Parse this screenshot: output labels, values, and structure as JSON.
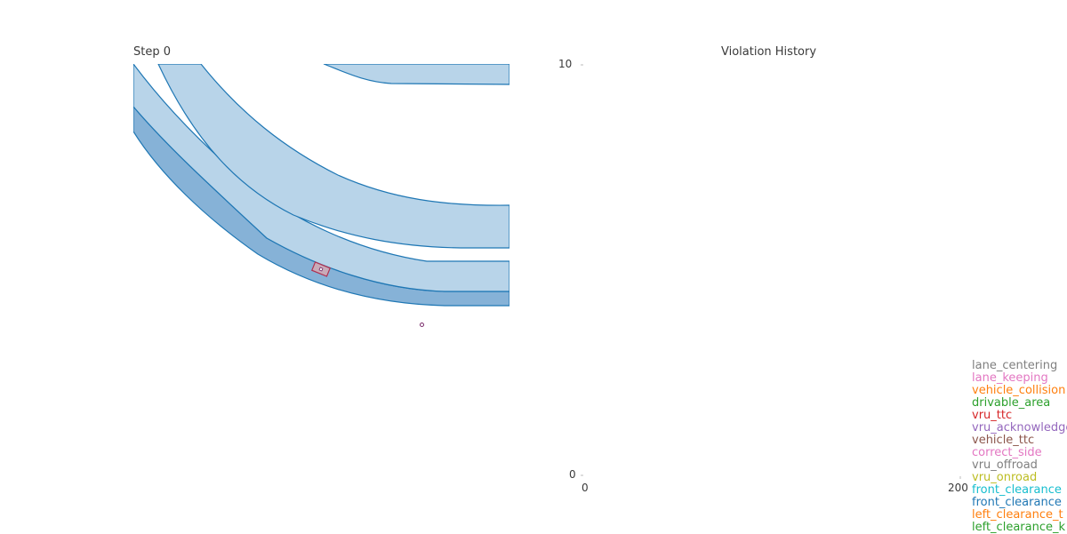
{
  "scene": {
    "title": "Step 0",
    "colors": {
      "lane_fill": "#b8d4e9",
      "lane_edge": "#1f77b4",
      "shoulder_fill": "#86b2d7",
      "vehicle_edge": "#b03050"
    }
  },
  "chart_data": {
    "type": "line",
    "title": "Violation History",
    "xlabel": "",
    "ylabel": "",
    "xlim": [
      0,
      200
    ],
    "ylim": [
      0,
      10
    ],
    "x_ticks": [
      "0",
      "200"
    ],
    "y_ticks": [
      "0",
      "10"
    ],
    "grid": false,
    "legend_position": "right",
    "series": [
      {
        "name": "lane_centering",
        "color": "#7f7f7f",
        "values": []
      },
      {
        "name": "lane_keeping",
        "color": "#e377c2",
        "values": []
      },
      {
        "name": "vehicle_collision",
        "color": "#ff7f0e",
        "values": []
      },
      {
        "name": "drivable_area",
        "color": "#2ca02c",
        "values": []
      },
      {
        "name": "vru_ttc",
        "color": "#d62728",
        "values": []
      },
      {
        "name": "vru_acknowledge",
        "color": "#9467bd",
        "values": []
      },
      {
        "name": "vehicle_ttc",
        "color": "#8c564b",
        "values": []
      },
      {
        "name": "correct_side",
        "color": "#e377c2",
        "values": []
      },
      {
        "name": "vru_offroad",
        "color": "#7f7f7f",
        "values": []
      },
      {
        "name": "vru_onroad",
        "color": "#bcbd22",
        "values": []
      },
      {
        "name": "front_clearance",
        "color": "#17becf",
        "values": []
      },
      {
        "name": "front_clearance",
        "color": "#1f77b4",
        "values": []
      },
      {
        "name": "left_clearance_t",
        "color": "#ff7f0e",
        "values": []
      },
      {
        "name": "left_clearance_k",
        "color": "#2ca02c",
        "values": []
      }
    ]
  }
}
